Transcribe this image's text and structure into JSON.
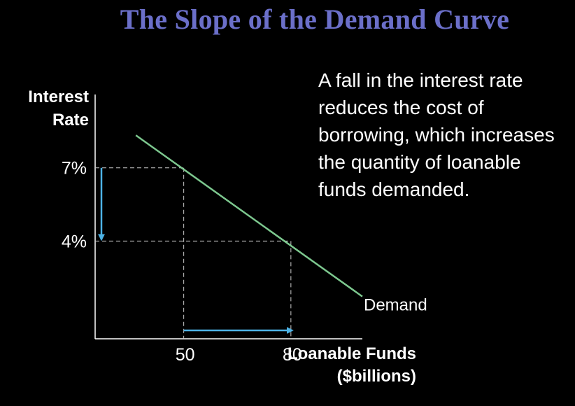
{
  "slide": {
    "title": "The Slope of the Demand Curve",
    "explanation": "A fall in the interest rate reduces the cost of borrowing, which increases the quantity of loanable funds demanded."
  },
  "colors": {
    "title": "#6b6fc9",
    "demand_line": "#7dc88f",
    "arrows": "#4db3e6",
    "guides": "#cccccc"
  },
  "chart_data": {
    "type": "line",
    "ylabel_lines": [
      "Interest",
      "Rate"
    ],
    "xlabel_lines": [
      "Loanable Funds",
      "($billions)"
    ],
    "x_ticks": [
      {
        "value": 50,
        "label": "50"
      },
      {
        "value": 80,
        "label": "80"
      }
    ],
    "y_ticks": [
      {
        "value": 7,
        "label": "7%"
      },
      {
        "value": 4,
        "label": "4%"
      }
    ],
    "series": [
      {
        "name": "Demand",
        "points": [
          [
            36.6,
            8.33
          ],
          [
            100.0,
            1.73
          ]
        ]
      }
    ],
    "marked_points": [
      {
        "x": 50,
        "y": 7
      },
      {
        "x": 80,
        "y": 4
      }
    ],
    "arrows": [
      {
        "axis": "y",
        "from": 7,
        "to": 4
      },
      {
        "axis": "x",
        "from": 50,
        "to": 80
      }
    ],
    "xlim": [
      25.2,
      100
    ],
    "ylim": [
      0,
      10
    ],
    "grid": false
  }
}
